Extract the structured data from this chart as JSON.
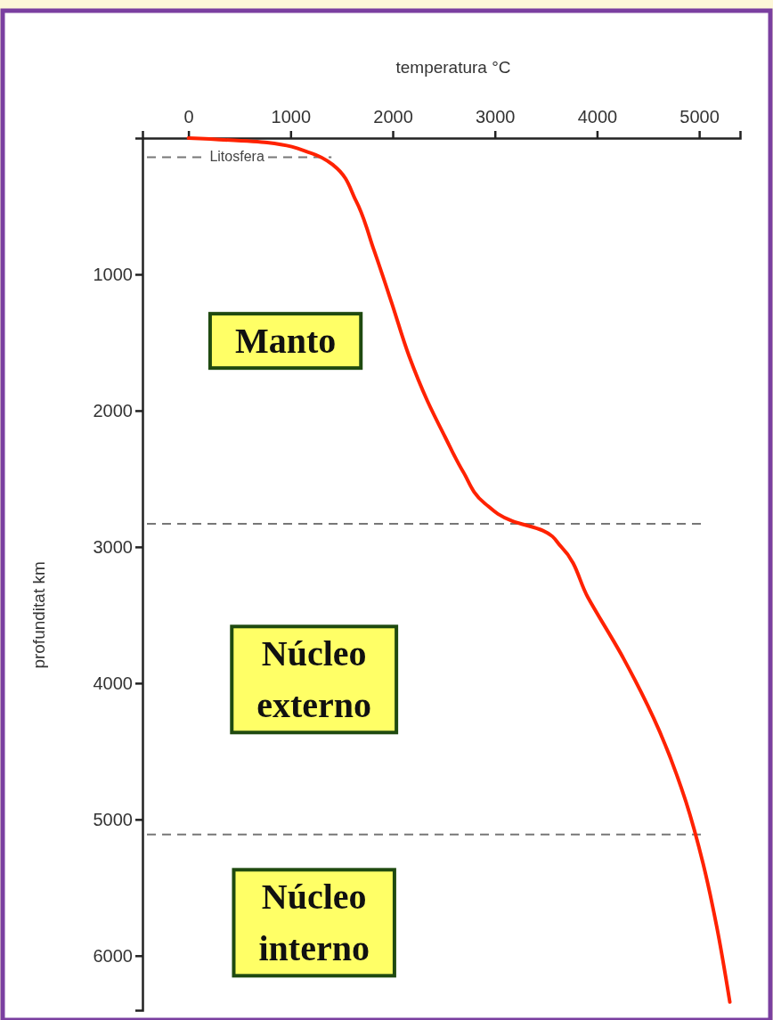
{
  "chart_data": {
    "type": "line",
    "xlabel": "temperatura °C",
    "ylabel": "profunditat km",
    "x": [
      0,
      770,
      1200,
      1420,
      1640,
      1815,
      1990,
      2160,
      2340,
      2510,
      2690,
      2900,
      3170,
      3470,
      3650,
      3910,
      4260,
      4610,
      4870,
      5040,
      5170,
      5300
    ],
    "series": [
      {
        "color": "#ff2200",
        "values": [
          0,
          33,
          110,
          200,
          460,
          820,
          1210,
          1600,
          1930,
          2190,
          2450,
          2680,
          2810,
          2880,
          3000,
          3370,
          3820,
          4350,
          4870,
          5330,
          5780,
          6340
        ]
      }
    ],
    "xlim": [
      -450,
      5400
    ],
    "xticks": [
      0,
      1000,
      2000,
      3000,
      4000,
      5000
    ],
    "ylim": [
      6400,
      0
    ],
    "yticks": [
      1000,
      2000,
      3000,
      4000,
      5000,
      6000
    ],
    "grid": false,
    "marker": "none",
    "line_style": "solid",
    "ref_lines": [
      {
        "axis": "y",
        "value": 140,
        "label": "Litosfera",
        "color": "#777777",
        "line_style": "dashed"
      },
      {
        "axis": "y",
        "value": 2830,
        "color": "#777777",
        "line_style": "dashed"
      },
      {
        "axis": "y",
        "value": 5110,
        "color": "#777777",
        "line_style": "dashed"
      }
    ],
    "annotations": [
      "Manto",
      "Núcleo externo",
      "Núcleo interno"
    ]
  }
}
